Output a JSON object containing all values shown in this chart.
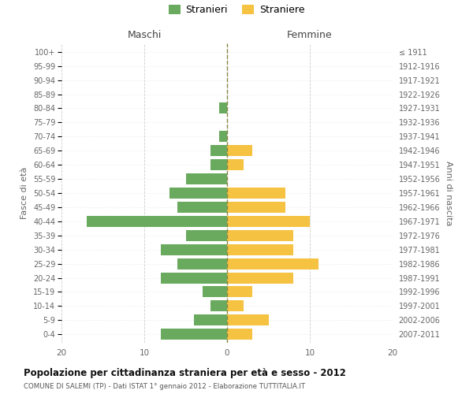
{
  "age_groups": [
    "0-4",
    "5-9",
    "10-14",
    "15-19",
    "20-24",
    "25-29",
    "30-34",
    "35-39",
    "40-44",
    "45-49",
    "50-54",
    "55-59",
    "60-64",
    "65-69",
    "70-74",
    "75-79",
    "80-84",
    "85-89",
    "90-94",
    "95-99",
    "100+"
  ],
  "birth_years": [
    "2007-2011",
    "2002-2006",
    "1997-2001",
    "1992-1996",
    "1987-1991",
    "1982-1986",
    "1977-1981",
    "1972-1976",
    "1967-1971",
    "1962-1966",
    "1957-1961",
    "1952-1956",
    "1947-1951",
    "1942-1946",
    "1937-1941",
    "1932-1936",
    "1927-1931",
    "1922-1926",
    "1917-1921",
    "1912-1916",
    "≤ 1911"
  ],
  "males": [
    8,
    4,
    2,
    3,
    8,
    6,
    8,
    5,
    17,
    6,
    7,
    5,
    2,
    2,
    1,
    0,
    1,
    0,
    0,
    0,
    0
  ],
  "females": [
    3,
    5,
    2,
    3,
    8,
    11,
    8,
    8,
    10,
    7,
    7,
    0,
    2,
    3,
    0,
    0,
    0,
    0,
    0,
    0,
    0
  ],
  "male_color": "#6aaa5e",
  "female_color": "#f5c242",
  "title": "Popolazione per cittadinanza straniera per età e sesso - 2012",
  "subtitle": "COMUNE DI SALEMI (TP) - Dati ISTAT 1° gennaio 2012 - Elaborazione TUTTITALIA.IT",
  "xlabel_left": "Maschi",
  "xlabel_right": "Femmine",
  "ylabel_left": "Fasce di età",
  "ylabel_right": "Anni di nascita",
  "legend_male": "Stranieri",
  "legend_female": "Straniere",
  "xlim": 20,
  "background_color": "#ffffff",
  "grid_color": "#cccccc"
}
